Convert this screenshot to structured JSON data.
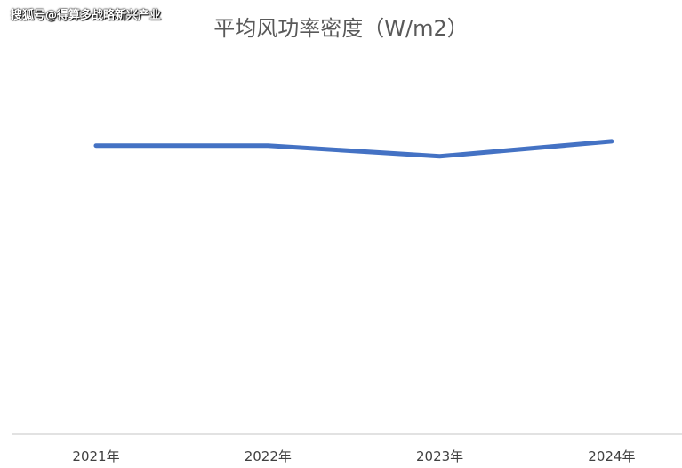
{
  "watermark": "搜狐号@得算多战略新兴产业",
  "chart_data": {
    "type": "line",
    "title": "平均风功率密度（W/m2）",
    "categories": [
      "2021年",
      "2022年",
      "2023年",
      "2024年"
    ],
    "series": [
      {
        "values": [
          268,
          268,
          258,
          272
        ]
      }
    ],
    "ylim": [
      0,
      400
    ],
    "grid": false,
    "colors": {
      "line": "#4472C4",
      "axis": "#D9D9D9"
    }
  }
}
